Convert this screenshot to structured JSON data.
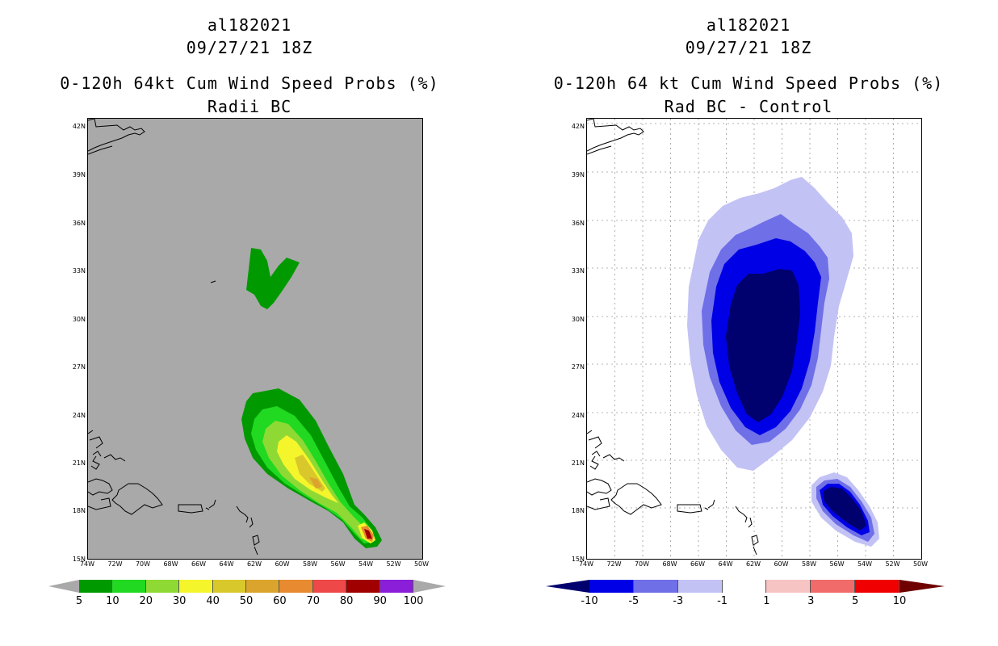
{
  "left": {
    "title_line1": "al182021",
    "title_line2": "09/27/21 18Z",
    "title_line3": "0-120h 64kt Cum Wind Speed Probs (%)",
    "title_line4": "Radii BC",
    "background_color": "#a9a9a9",
    "colorbar": {
      "colors": [
        "#009a00",
        "#21d921",
        "#8fd935",
        "#f5f52b",
        "#d9c82b",
        "#dba52d",
        "#e88a2f",
        "#ee4848",
        "#a00000",
        "#8a1ed9"
      ],
      "low_tip_color": "#a9a9a9",
      "high_tip_color": "#a9a9a9",
      "labels": [
        "5",
        "10",
        "20",
        "30",
        "40",
        "50",
        "60",
        "70",
        "80",
        "90",
        "100"
      ]
    }
  },
  "right": {
    "title_line1": "al182021",
    "title_line2": "09/27/21 18Z",
    "title_line3": "0-120h 64 kt Cum Wind Speed Probs (%)",
    "title_line4": "Rad BC - Control",
    "background_color": "#ffffff",
    "colorbar": {
      "colors": [
        "#0000e6",
        "#6f6fe8",
        "#c2c2f5",
        "#ffffff",
        "#f7c4c4",
        "#f16b6b",
        "#f00000"
      ],
      "low_tip_color": "#00006e",
      "high_tip_color": "#6e0000",
      "labels": [
        "-10",
        "-5",
        "-3",
        "-1",
        "1",
        "3",
        "5",
        "10"
      ]
    }
  },
  "axes": {
    "lat_labels": [
      "42N",
      "39N",
      "36N",
      "33N",
      "30N",
      "27N",
      "24N",
      "21N",
      "18N",
      "15N"
    ],
    "lon_labels": [
      "74W",
      "72W",
      "70W",
      "68W",
      "66W",
      "64W",
      "62W",
      "60W",
      "58W",
      "56W",
      "54W",
      "52W",
      "50W"
    ]
  }
}
